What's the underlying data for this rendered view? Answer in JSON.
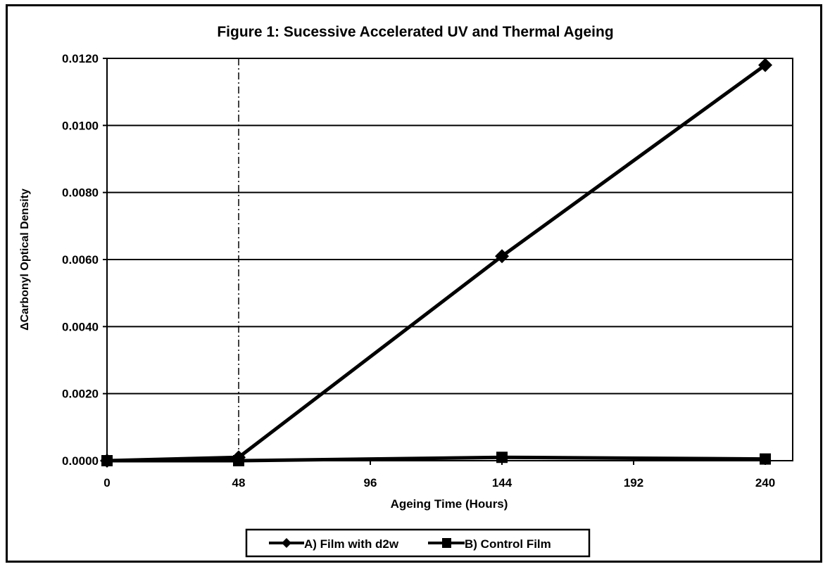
{
  "chart_data": {
    "type": "line",
    "title": "Figure 1: Sucessive Accelerated UV and Thermal Ageing",
    "xlabel": "Ageing Time (Hours)",
    "ylabel": "ΔCarbonyl Optical Density",
    "xlim": [
      0,
      250
    ],
    "ylim": [
      0,
      0.012
    ],
    "xticks": [
      0,
      48,
      96,
      144,
      192,
      240
    ],
    "xtick_labels": [
      "0",
      "48",
      "96",
      "144",
      "192",
      "240"
    ],
    "yticks": [
      0,
      0.002,
      0.004,
      0.006,
      0.008,
      0.01,
      0.012
    ],
    "ytick_labels": [
      "0.0000",
      "0.0020",
      "0.0040",
      "0.0060",
      "0.0080",
      "0.0100",
      "0.0120"
    ],
    "grid": "horizontal",
    "vertical_reference_line": 48,
    "legend_position": "bottom",
    "series": [
      {
        "name": "A) Film with d2w",
        "marker": "diamond",
        "x": [
          0,
          48,
          144,
          240
        ],
        "values": [
          0.0,
          0.0001,
          0.0061,
          0.0118
        ],
        "color": "#000000"
      },
      {
        "name": "B) Control Film",
        "marker": "square",
        "x": [
          0,
          48,
          144,
          240
        ],
        "values": [
          0.0,
          0.0,
          0.0001,
          5e-05
        ],
        "color": "#000000"
      }
    ]
  }
}
